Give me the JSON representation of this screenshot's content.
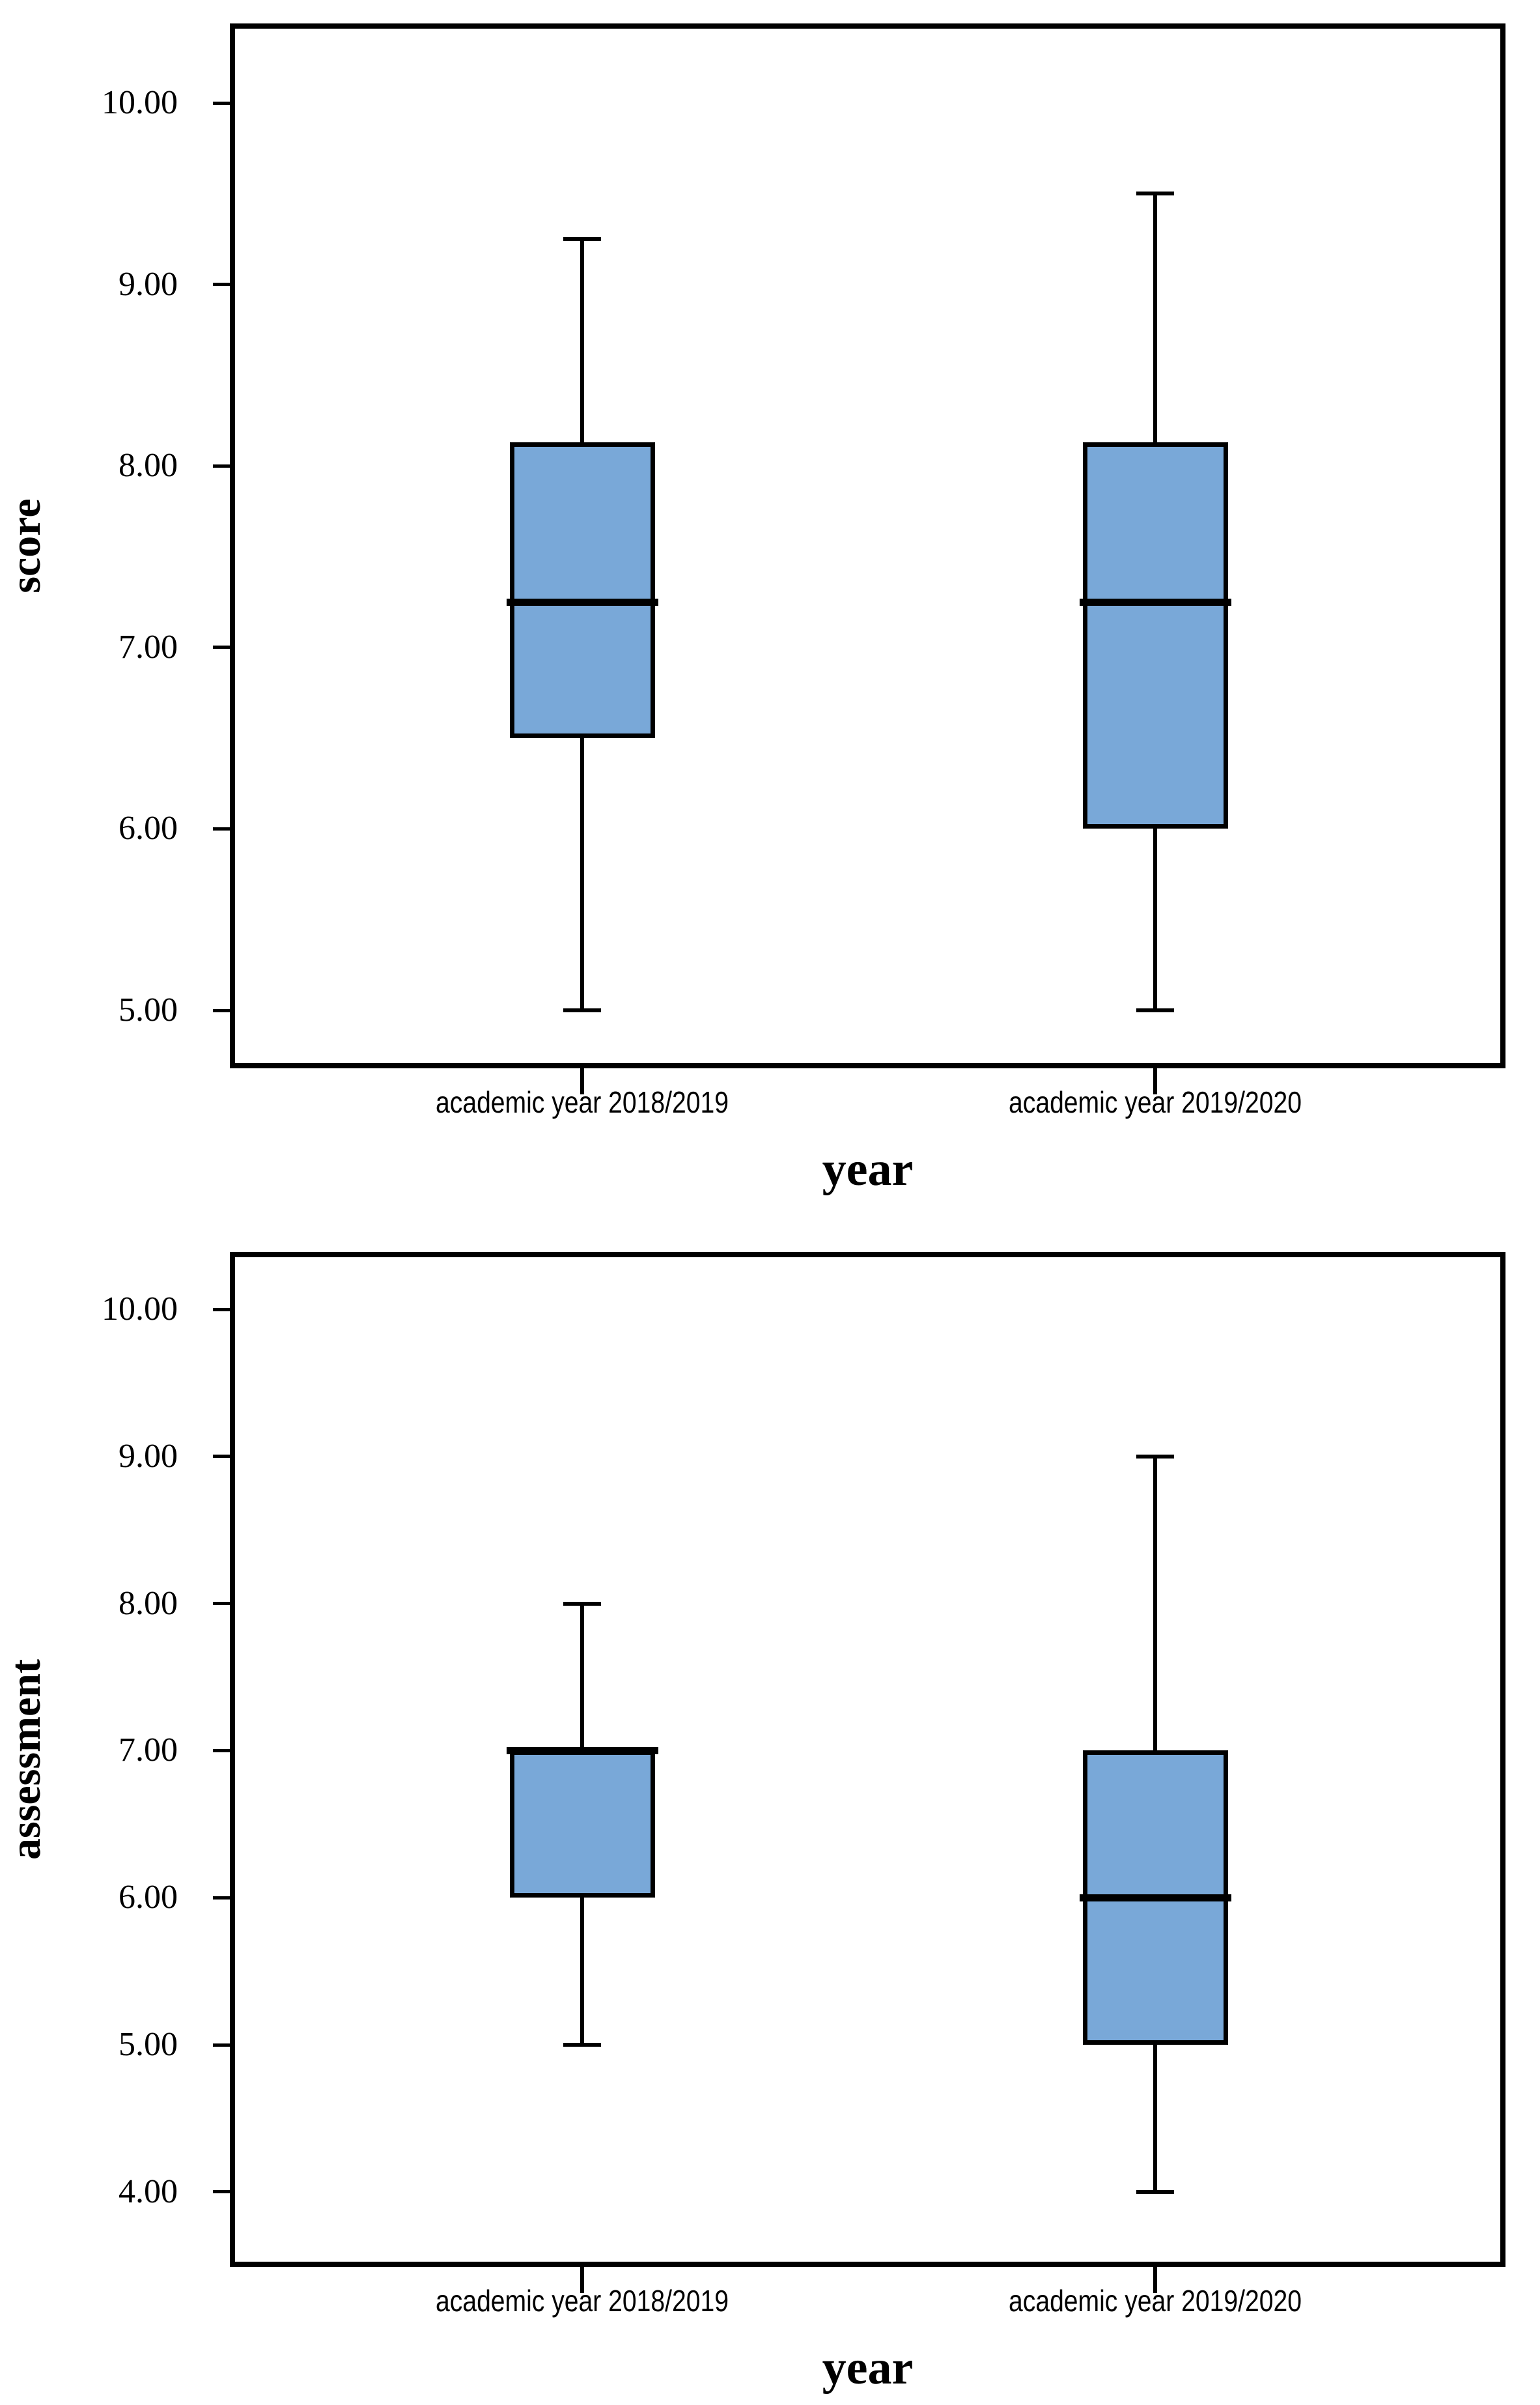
{
  "figure": {
    "background": "#ffffff",
    "box_fill": "#79a8d8",
    "line_color": "#000000"
  },
  "chart_data": [
    {
      "type": "boxplot",
      "title": "",
      "xlabel": "year",
      "ylabel": "score",
      "categories": [
        "academic year 2018/2019",
        "academic year 2019/2020"
      ],
      "y_tick_labels": [
        "10.00",
        "9.00",
        "8.00",
        "7.00",
        "6.00",
        "5.00"
      ],
      "y_tick_values": [
        10,
        9,
        8,
        7,
        6,
        5
      ],
      "ylim": [
        4.71,
        10.41
      ],
      "grid": false,
      "legend": false,
      "series": [
        {
          "category": "academic year 2018/2019",
          "whisker_low": 5.0,
          "q1": 6.5,
          "median": 7.25,
          "q3": 8.13,
          "whisker_high": 9.25
        },
        {
          "category": "academic year 2019/2020",
          "whisker_low": 5.0,
          "q1": 6.0,
          "median": 7.25,
          "q3": 8.13,
          "whisker_high": 9.5
        }
      ]
    },
    {
      "type": "boxplot",
      "title": "",
      "xlabel": "year",
      "ylabel": "assessment",
      "categories": [
        "academic year 2018/2019",
        "academic year 2019/2020"
      ],
      "y_tick_labels": [
        "10.00",
        "9.00",
        "8.00",
        "7.00",
        "6.00",
        "5.00",
        "4.00"
      ],
      "y_tick_values": [
        10,
        9,
        8,
        7,
        6,
        5,
        4
      ],
      "ylim": [
        3.53,
        10.35
      ],
      "grid": false,
      "legend": false,
      "series": [
        {
          "category": "academic year 2018/2019",
          "whisker_low": 5.0,
          "q1": 6.0,
          "median": 7.0,
          "q3": 7.0,
          "whisker_high": 8.0
        },
        {
          "category": "academic year 2019/2020",
          "whisker_low": 4.0,
          "q1": 5.0,
          "median": 6.0,
          "q3": 7.0,
          "whisker_high": 9.0
        }
      ]
    }
  ]
}
